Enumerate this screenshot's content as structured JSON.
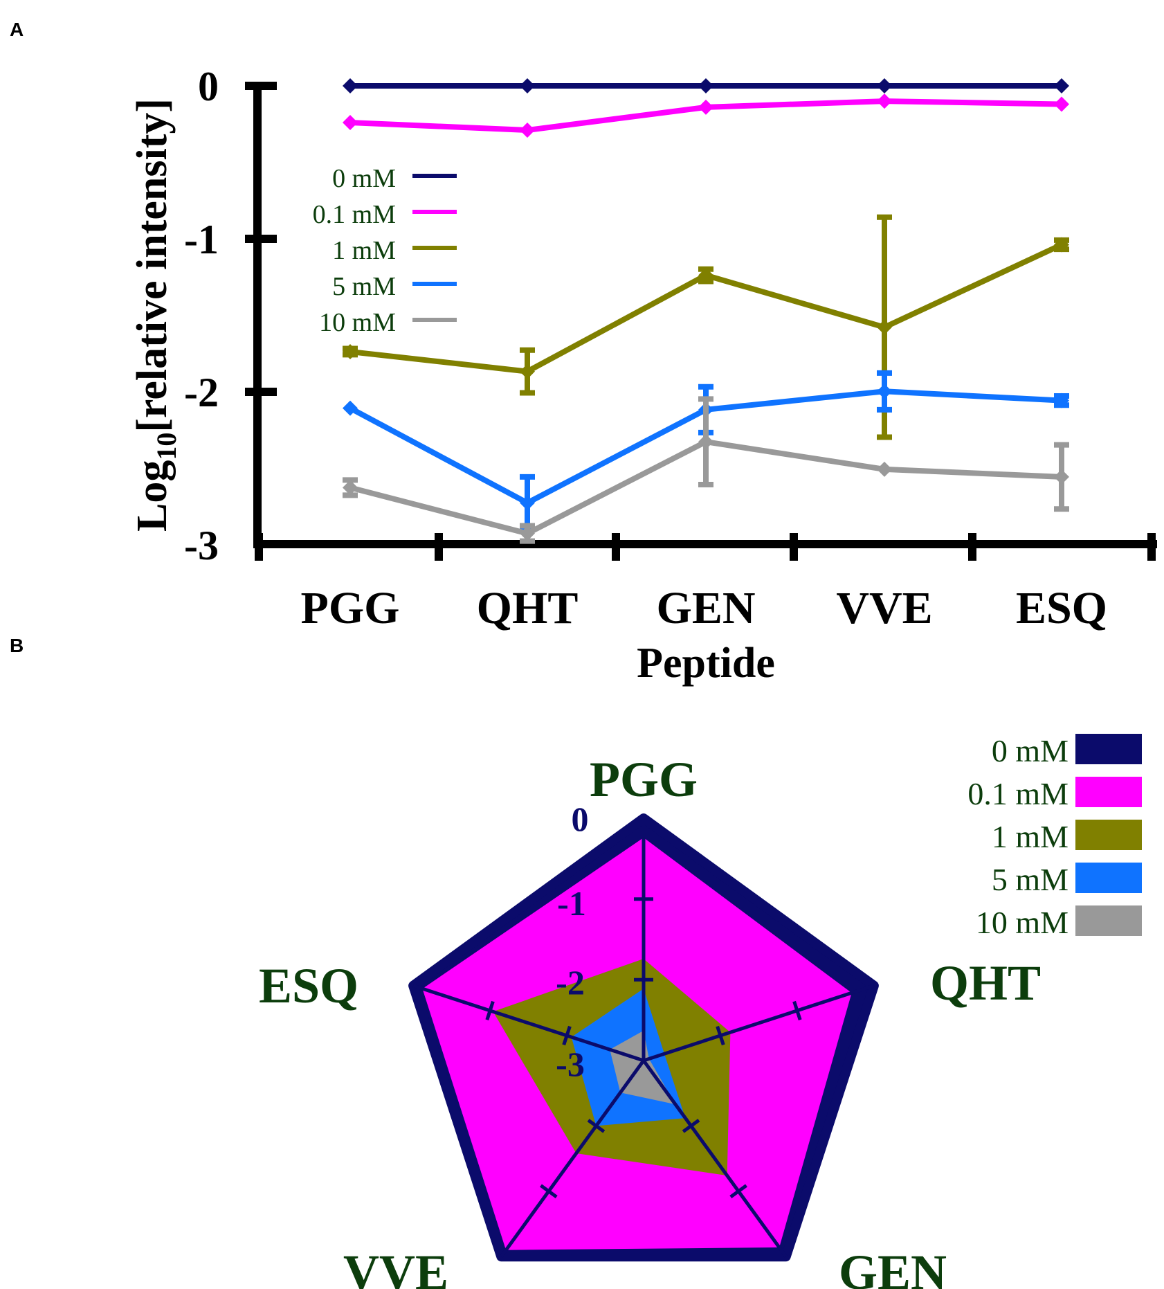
{
  "panels": {
    "a": "A",
    "b": "B"
  },
  "colors": {
    "0 mM": "#0b0b6b",
    "0.1 mM": "#ff00ff",
    "1 mM": "#808000",
    "5 mM": "#0f73ff",
    "10 mM": "#999999",
    "axis": "#000000",
    "label_green": "#0c3d0c"
  },
  "chart_data": [
    {
      "type": "line",
      "panel": "A",
      "title": "",
      "xlabel": "Peptide",
      "ylabel": "Log10[relative intensity]",
      "ylabel_main": "Log",
      "ylabel_sub": "10",
      "ylabel_rest": "[relative intensity]",
      "ylim": [
        -3,
        0
      ],
      "yticks": [
        "0",
        "-1",
        "-2",
        "-3"
      ],
      "categories": [
        "PGG",
        "QHT",
        "GEN",
        "VVE",
        "ESQ"
      ],
      "series": [
        {
          "name": "0 mM",
          "values": [
            0,
            0,
            0,
            0,
            0
          ],
          "errors": [
            0,
            0,
            0,
            0,
            0
          ]
        },
        {
          "name": "0.1 mM",
          "values": [
            -0.24,
            -0.29,
            -0.14,
            -0.1,
            -0.12
          ],
          "errors": [
            0,
            0,
            0,
            0,
            0
          ]
        },
        {
          "name": "1 mM",
          "values": [
            -1.74,
            -1.87,
            -1.24,
            -1.58,
            -1.04
          ],
          "errors": [
            0.02,
            0.14,
            0.04,
            0.72,
            0.03
          ]
        },
        {
          "name": "5 mM",
          "values": [
            -2.11,
            -2.73,
            -2.12,
            -2.0,
            -2.06
          ],
          "errors": [
            0,
            0.17,
            0.15,
            0.12,
            0.03
          ]
        },
        {
          "name": "10 mM",
          "values": [
            -2.63,
            -2.93,
            -2.33,
            -2.51,
            -2.56
          ],
          "errors": [
            0.05,
            0.05,
            0.28,
            0,
            0.21
          ]
        }
      ],
      "legend": [
        "0 mM",
        "0.1 mM",
        "1 mM",
        "5 mM",
        "10 mM"
      ],
      "legend_position": "left-inside"
    },
    {
      "type": "radar",
      "panel": "B",
      "categories": [
        "PGG",
        "QHT",
        "GEN",
        "VVE",
        "ESQ"
      ],
      "rlim": [
        -3,
        0
      ],
      "rticks": [
        "0",
        "-1",
        "-2",
        "-3"
      ],
      "series": [
        {
          "name": "0 mM",
          "values": [
            0,
            0,
            0,
            0,
            0
          ]
        },
        {
          "name": "0.1 mM",
          "values": [
            -0.24,
            -0.29,
            -0.14,
            -0.1,
            -0.12
          ]
        },
        {
          "name": "1 mM",
          "values": [
            -1.74,
            -1.87,
            -1.24,
            -1.58,
            -1.04
          ]
        },
        {
          "name": "5 mM",
          "values": [
            -2.11,
            -2.73,
            -2.12,
            -2.0,
            -2.06
          ]
        },
        {
          "name": "10 mM",
          "values": [
            -2.63,
            -2.93,
            -2.33,
            -2.51,
            -2.56
          ]
        }
      ],
      "legend": [
        "0 mM",
        "0.1 mM",
        "1 mM",
        "5 mM",
        "10 mM"
      ],
      "legend_position": "top-right"
    }
  ]
}
